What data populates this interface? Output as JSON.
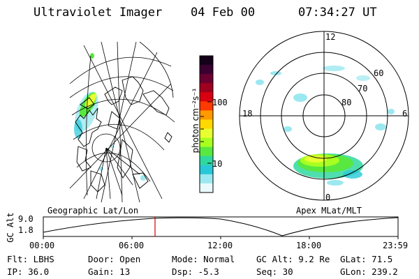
{
  "header": {
    "instrument": "Ultraviolet Imager",
    "date": "04 Feb 00",
    "time": "07:34:27 UT"
  },
  "colorbar": {
    "unit_label": "photon cm⁻²s⁻¹",
    "ticks": [
      "100",
      "10"
    ],
    "colors": [
      "#140018",
      "#3a0030",
      "#6a0030",
      "#a00020",
      "#d80010",
      "#ff3a00",
      "#ff9a00",
      "#ffd800",
      "#e8ff30",
      "#a8ff20",
      "#58e840",
      "#30d8a0",
      "#28c8d8",
      "#9ce8f0",
      "#eafafc"
    ]
  },
  "panels": {
    "left_label": "Geographic Lat/Lon",
    "right_label": "Apex MLat/MLT",
    "mlt_labels": {
      "top": "12",
      "left": "18",
      "right": "6",
      "bottom": "0"
    },
    "mlat_labels": [
      "60",
      "70",
      "80"
    ]
  },
  "altitude_plot": {
    "ylabel": "GC Alt",
    "yticks": [
      "9.0",
      "1.8"
    ],
    "xticks": [
      "00:00",
      "06:00",
      "12:00",
      "18:00",
      "23:59"
    ],
    "current_time_marker": "07:34"
  },
  "info": {
    "flt": {
      "label": "Flt:",
      "value": "LBHS"
    },
    "ip": {
      "label": "IP:",
      "value": "36.0"
    },
    "door": {
      "label": "Door:",
      "value": "Open"
    },
    "gain": {
      "label": "Gain:",
      "value": "13"
    },
    "mode": {
      "label": "Mode:",
      "value": "Normal"
    },
    "dsp": {
      "label": "Dsp:",
      "value": "-5.3"
    },
    "gcalt": {
      "label": "GC Alt:",
      "value": "9.2 Re"
    },
    "seq": {
      "label": "Seq:",
      "value": "30"
    },
    "glat": {
      "label": "GLat:",
      "value": "71.5"
    },
    "glon": {
      "label": "GLon:",
      "value": "239.2"
    }
  }
}
